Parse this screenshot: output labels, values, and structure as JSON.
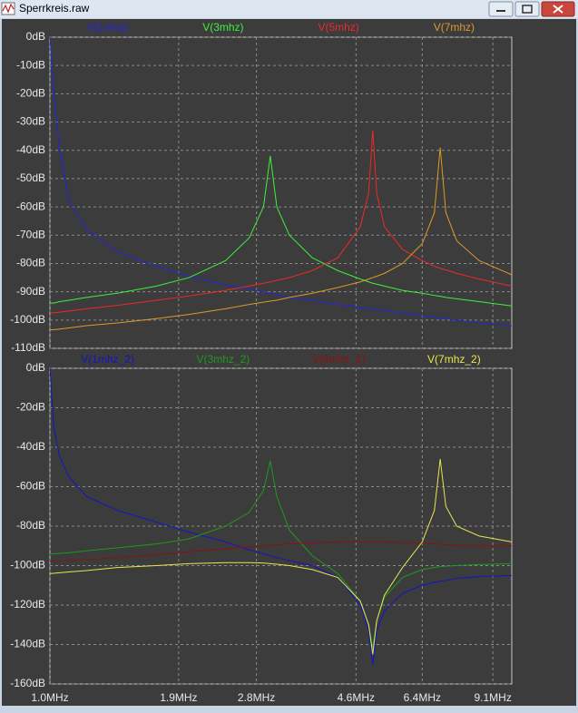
{
  "window": {
    "title": "Sperrkreis.raw"
  },
  "chart_data": [
    {
      "type": "line",
      "xscale": "log",
      "grid": true,
      "x": [
        1000000,
        1020000,
        1050000,
        1100000,
        1200000,
        1400000,
        1700000,
        2000000,
        2400000,
        2700000,
        2900000,
        3000000,
        3100000,
        3300000,
        3700000,
        4200000,
        4700000,
        4900000,
        5000000,
        5100000,
        5300000,
        5800000,
        6400000,
        6800000,
        7000000,
        7200000,
        7600000,
        8500000,
        10000000
      ],
      "xlim": [
        1000000,
        10000000
      ],
      "ylim": [
        -110,
        0
      ],
      "yticks": [
        {
          "value": 0,
          "label": "0dB"
        },
        {
          "value": -10,
          "label": "-10dB"
        },
        {
          "value": -20,
          "label": "-20dB"
        },
        {
          "value": -30,
          "label": "-30dB"
        },
        {
          "value": -40,
          "label": "-40dB"
        },
        {
          "value": -50,
          "label": "-50dB"
        },
        {
          "value": -60,
          "label": "-60dB"
        },
        {
          "value": -70,
          "label": "-70dB"
        },
        {
          "value": -80,
          "label": "-80dB"
        },
        {
          "value": -90,
          "label": "-90dB"
        },
        {
          "value": -100,
          "label": "-100dB"
        },
        {
          "value": -110,
          "label": "-110dB"
        }
      ],
      "series": [
        {
          "name": "V(1mhz)",
          "color": "#2424e0",
          "values": [
            0,
            -20,
            -40,
            -58,
            -68,
            -76,
            -81,
            -84.5,
            -87.5,
            -89,
            -90,
            -90.5,
            -91,
            -92,
            -93,
            -94.5,
            -95.5,
            -96,
            -96,
            -96.3,
            -96.7,
            -97.5,
            -98.5,
            -99,
            -99.3,
            -99.5,
            -100,
            -101,
            -102
          ]
        },
        {
          "name": "V(3mhz)",
          "color": "#3cf03c",
          "values": [
            -94,
            -94,
            -93.5,
            -93,
            -92,
            -90.5,
            -88,
            -85,
            -79,
            -71,
            -60,
            -42,
            -60,
            -70,
            -78,
            -82.5,
            -85.5,
            -86.5,
            -87,
            -87.3,
            -88,
            -89.5,
            -90.5,
            -91.3,
            -91.6,
            -92,
            -92.5,
            -93.5,
            -95
          ]
        },
        {
          "name": "V(5mhz)",
          "color": "#f02828",
          "values": [
            -97.5,
            -97.4,
            -97.2,
            -96.8,
            -96,
            -94.8,
            -93,
            -91.5,
            -89.5,
            -88,
            -87,
            -86.5,
            -86,
            -85,
            -82.5,
            -78,
            -67,
            -55,
            -33,
            -55,
            -67,
            -75,
            -79,
            -81,
            -81.7,
            -82.3,
            -83.5,
            -85.5,
            -88
          ]
        },
        {
          "name": "V(7mhz)",
          "color": "#dc9a2c",
          "values": [
            -103.5,
            -103.4,
            -103.2,
            -102.8,
            -102,
            -101,
            -99.5,
            -98,
            -96,
            -94.5,
            -93.7,
            -93.3,
            -93,
            -92,
            -90.5,
            -88.5,
            -86.5,
            -85.5,
            -85,
            -84.5,
            -83.5,
            -80,
            -73,
            -62,
            -39,
            -62,
            -72,
            -79,
            -84
          ]
        }
      ]
    },
    {
      "type": "line",
      "xscale": "log",
      "grid": true,
      "x": [
        1000000,
        1020000,
        1050000,
        1100000,
        1200000,
        1400000,
        1700000,
        2000000,
        2400000,
        2700000,
        2900000,
        3000000,
        3100000,
        3300000,
        3700000,
        4200000,
        4700000,
        4900000,
        5000000,
        5100000,
        5300000,
        5800000,
        6400000,
        6800000,
        7000000,
        7200000,
        7600000,
        8500000,
        10000000
      ],
      "xlim": [
        1000000,
        10000000
      ],
      "xticks": [
        {
          "value": 1000000,
          "label": "1.0MHz"
        },
        {
          "value": 1900000,
          "label": "1.9MHz"
        },
        {
          "value": 2800000,
          "label": "2.8MHz"
        },
        {
          "value": 4600000,
          "label": "4.6MHz"
        },
        {
          "value": 6400000,
          "label": "6.4MHz"
        },
        {
          "value": 9100000,
          "label": "9.1MHz"
        }
      ],
      "ylim": [
        -160,
        0
      ],
      "yticks": [
        {
          "value": 0,
          "label": "0dB"
        },
        {
          "value": -20,
          "label": "-20dB"
        },
        {
          "value": -40,
          "label": "-40dB"
        },
        {
          "value": -60,
          "label": "-60dB"
        },
        {
          "value": -80,
          "label": "-80dB"
        },
        {
          "value": -100,
          "label": "-100dB"
        },
        {
          "value": -120,
          "label": "-120dB"
        },
        {
          "value": -140,
          "label": "-140dB"
        },
        {
          "value": -160,
          "label": "-160dB"
        }
      ],
      "series": [
        {
          "name": "V(1mhz_2)",
          "color": "#1414c8",
          "values": [
            0,
            -30,
            -45,
            -55,
            -65,
            -72,
            -78,
            -83,
            -88,
            -92,
            -94,
            -95,
            -96,
            -97.5,
            -100,
            -106,
            -120,
            -133,
            -150,
            -133,
            -123,
            -114,
            -110,
            -108.5,
            -108,
            -107.5,
            -106.5,
            -105.5,
            -105
          ]
        },
        {
          "name": "V(3mhz_2)",
          "color": "#1e9a1e",
          "values": [
            -94,
            -94,
            -93.8,
            -93.5,
            -92.5,
            -91,
            -89,
            -86.5,
            -80,
            -73,
            -62,
            -47,
            -65,
            -82,
            -95,
            -104,
            -118,
            -130,
            -142,
            -128,
            -116,
            -106,
            -102,
            -101,
            -100.5,
            -100.3,
            -100,
            -99.5,
            -99
          ]
        },
        {
          "name": "V(5mhz_2)",
          "color": "#8c1212",
          "values": [
            -98,
            -97.9,
            -97.8,
            -97.5,
            -97,
            -96,
            -94.5,
            -93,
            -91.5,
            -90.5,
            -90,
            -89.8,
            -89.5,
            -89,
            -88.5,
            -88,
            -88,
            -88,
            -88,
            -88,
            -88,
            -88.3,
            -88.7,
            -89,
            -89.2,
            -89.4,
            -89.7,
            -90,
            -90
          ]
        },
        {
          "name": "V(7mhz_2)",
          "color": "#e6e650",
          "values": [
            -104,
            -103.9,
            -103.6,
            -103.2,
            -102.5,
            -101,
            -100,
            -99,
            -98.5,
            -98.5,
            -98.7,
            -99,
            -99.3,
            -100,
            -102,
            -106,
            -118,
            -130,
            -145,
            -128,
            -115,
            -101,
            -88,
            -72,
            -46,
            -70,
            -80,
            -85,
            -88
          ]
        }
      ]
    }
  ]
}
